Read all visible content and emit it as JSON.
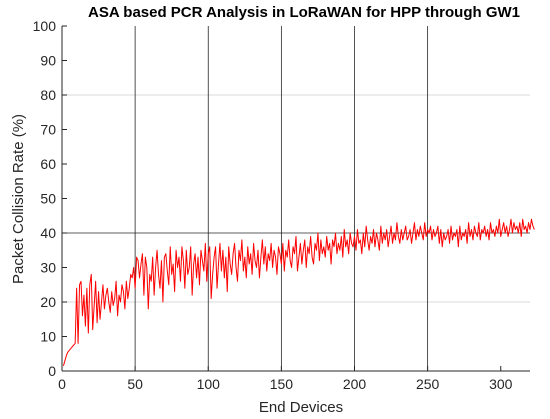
{
  "colors": {
    "background": "#ffffff",
    "series": "#ff0000",
    "axis": "#262626",
    "grid_major": "#262626",
    "grid_minor": "#d9d9d9"
  },
  "chart_data": {
    "type": "line",
    "title": "ASA based PCR Analysis in LoRaWAN for HPP through GW1",
    "xlabel": "End Devices",
    "ylabel": "Packet Collision Rate (%)",
    "xlim": [
      0,
      320
    ],
    "ylim": [
      0,
      100
    ],
    "xticks": [
      0,
      50,
      100,
      150,
      200,
      250,
      300
    ],
    "yticks": [
      0,
      10,
      20,
      30,
      40,
      50,
      60,
      70,
      80,
      90,
      100
    ],
    "x_gridlines": [
      50,
      100,
      150,
      200,
      250
    ],
    "y_gridline_major": [
      40
    ],
    "y_gridlines_minor": [
      20,
      80
    ],
    "grid": true,
    "series": [
      {
        "color": "#ff0000",
        "x_start": 1,
        "x_step": 1,
        "values": [
          1.5,
          3,
          4.5,
          5.5,
          6,
          6.5,
          7,
          7.5,
          8,
          24,
          8,
          25,
          26,
          16,
          22,
          13,
          24,
          11,
          25,
          28,
          12,
          19,
          26,
          14,
          23,
          15,
          20,
          25,
          18,
          22,
          24,
          20,
          17,
          23,
          19,
          21,
          26,
          16,
          22,
          20,
          25,
          23,
          18,
          26,
          21,
          24,
          28,
          27,
          30,
          24,
          33,
          32,
          27,
          31,
          34,
          22,
          33,
          30,
          18,
          28,
          26,
          33,
          22,
          30,
          35,
          28,
          24,
          32,
          20,
          33,
          34,
          29,
          25,
          36,
          28,
          31,
          23,
          35,
          30,
          33,
          26,
          36,
          32,
          24,
          35,
          28,
          30,
          36,
          22,
          31,
          34,
          27,
          33,
          25,
          35,
          32,
          29,
          37,
          26,
          34,
          36,
          21,
          28,
          33,
          36,
          24,
          31,
          37,
          29,
          35,
          27,
          33,
          23,
          36,
          31,
          28,
          34,
          37,
          30,
          26,
          35,
          32,
          38,
          29,
          33,
          27,
          36,
          31,
          34,
          28,
          37,
          32,
          30,
          35,
          27,
          33,
          38,
          31,
          36,
          29,
          34,
          32,
          37,
          30,
          35,
          33,
          28,
          36,
          34,
          31,
          37,
          29,
          35,
          33,
          38,
          32,
          30,
          36,
          34,
          39,
          29,
          33,
          37,
          31,
          35,
          38,
          30,
          36,
          34,
          39,
          33,
          31,
          37,
          35,
          40,
          32,
          38,
          34,
          36,
          33,
          39,
          35,
          37,
          31,
          38,
          36,
          40,
          34,
          37,
          35,
          39,
          33,
          41,
          36,
          38,
          34,
          40,
          37,
          36,
          39,
          35,
          41,
          37,
          38,
          34,
          40,
          36,
          42,
          38,
          35,
          39,
          37,
          41,
          36,
          40,
          38,
          35,
          42,
          37,
          40,
          38,
          41,
          36,
          39,
          42,
          37,
          40,
          38,
          43,
          39,
          37,
          41,
          38,
          40,
          42,
          38,
          39,
          41,
          37,
          40,
          43,
          38,
          41,
          39,
          42,
          40,
          38,
          43,
          39,
          41,
          40,
          42,
          38,
          41,
          39,
          40,
          42,
          37,
          41,
          36,
          40,
          38,
          39,
          41,
          37,
          42,
          38,
          40,
          39,
          41,
          36,
          42,
          38,
          40,
          39,
          41,
          37,
          43,
          39,
          41,
          38,
          42,
          40,
          39,
          43,
          38,
          41,
          40,
          42,
          39,
          41,
          38,
          43,
          40,
          41,
          39,
          42,
          40,
          44,
          39,
          41,
          43,
          40,
          42,
          39,
          41,
          44,
          40,
          43,
          41,
          42,
          40,
          43,
          39,
          44,
          41,
          42,
          40,
          43,
          41,
          44,
          42,
          41
        ]
      }
    ]
  }
}
